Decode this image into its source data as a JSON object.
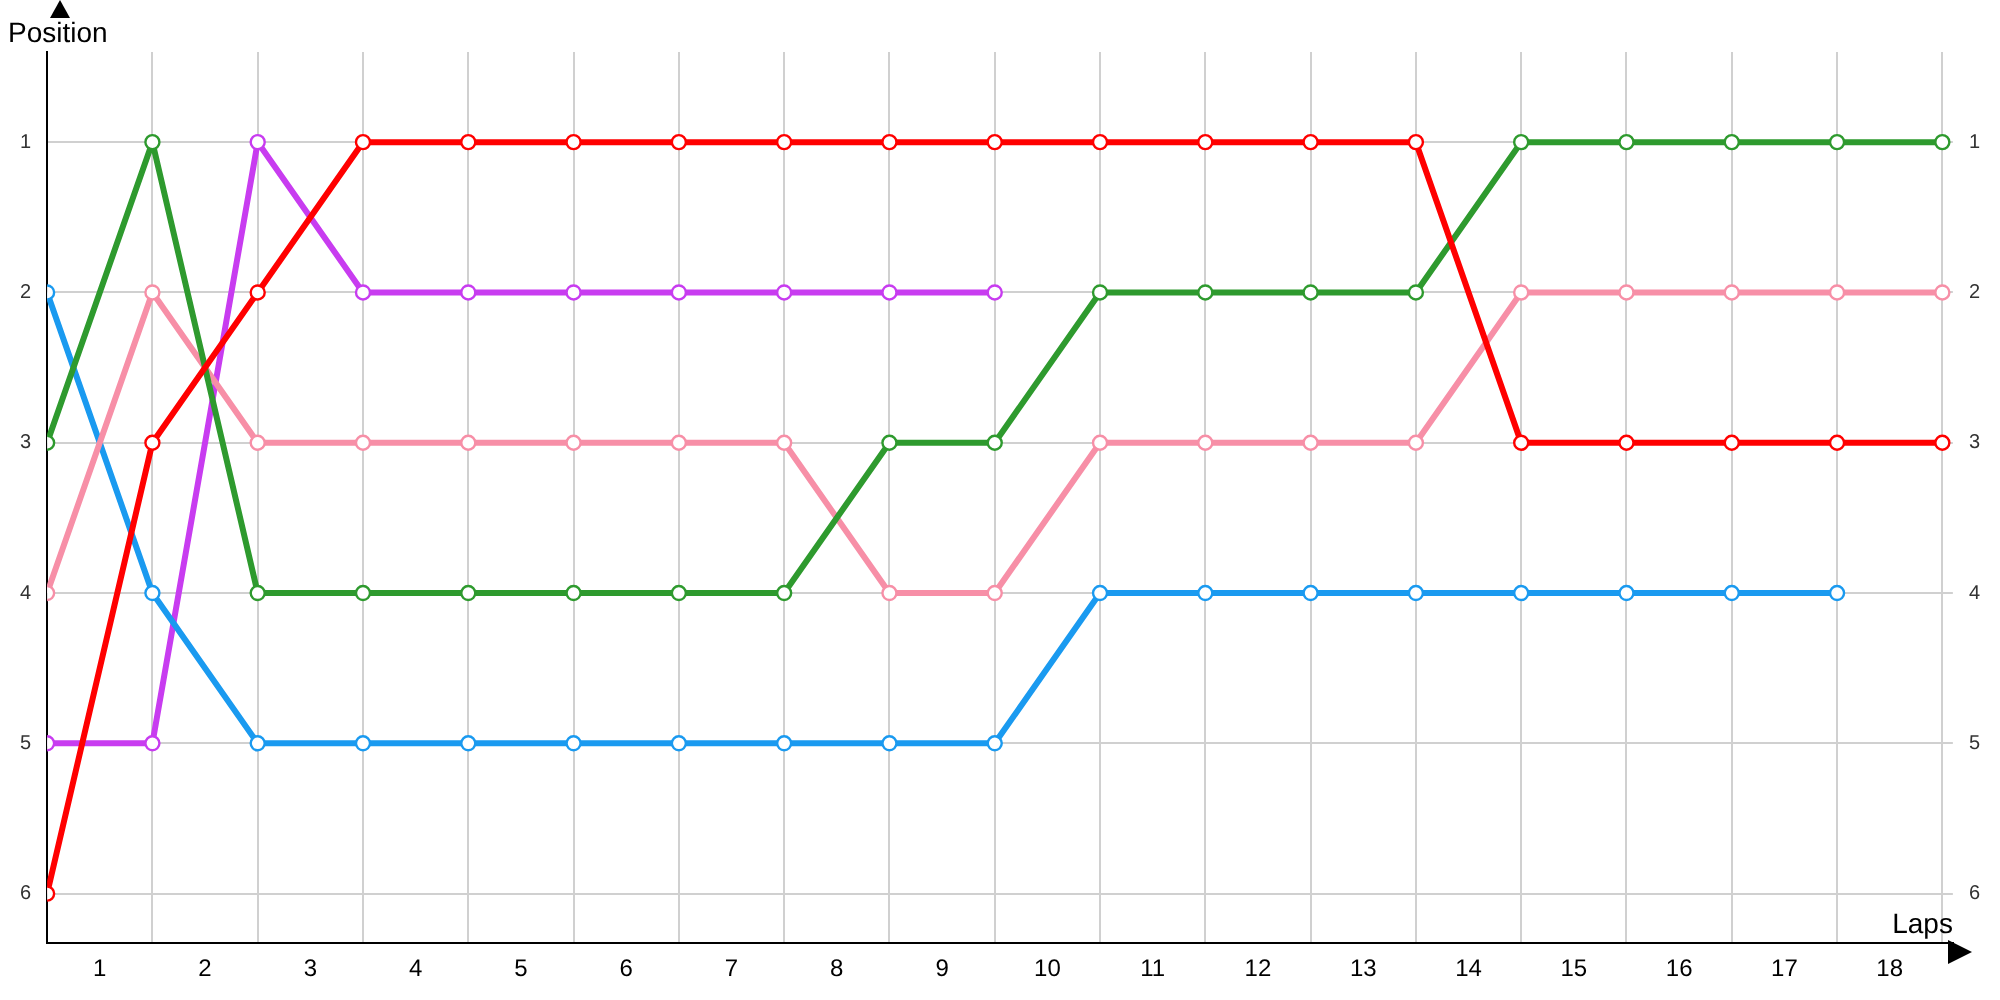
{
  "chart_data": {
    "type": "line",
    "xlabel": "Laps",
    "ylabel": "Position",
    "x": [
      0,
      1,
      2,
      3,
      4,
      5,
      6,
      7,
      8,
      9,
      10,
      11,
      12,
      13,
      14,
      15,
      16,
      17,
      18
    ],
    "series": [
      {
        "color": "#ff0000",
        "values": [
          6,
          3,
          2,
          1,
          1,
          1,
          1,
          1,
          1,
          1,
          1,
          1,
          1,
          1,
          3,
          3,
          3,
          3,
          3
        ]
      },
      {
        "color": "#2e9a2e",
        "values": [
          3,
          1,
          4,
          4,
          4,
          4,
          4,
          4,
          3,
          3,
          2,
          2,
          2,
          2,
          1,
          1,
          1,
          1,
          1
        ]
      },
      {
        "color": "#f78fa7",
        "values": [
          4,
          2,
          3,
          3,
          3,
          3,
          3,
          3,
          4,
          4,
          3,
          3,
          3,
          3,
          2,
          2,
          2,
          2,
          2
        ]
      },
      {
        "color": "#1a9af0",
        "values": [
          2,
          4,
          5,
          5,
          5,
          5,
          5,
          5,
          5,
          5,
          4,
          4,
          4,
          4,
          4,
          4,
          4,
          4,
          null
        ]
      },
      {
        "color": "#c83cf0",
        "values": [
          5,
          5,
          1,
          2,
          2,
          2,
          2,
          2,
          2,
          2,
          null,
          null,
          null,
          null,
          null,
          null,
          null,
          null,
          null
        ]
      }
    ],
    "xlim": [
      0,
      18.1
    ],
    "xticks": [
      {
        "value": 0,
        "label": null
      },
      {
        "value": 0.5,
        "label": "1"
      },
      {
        "value": 1,
        "label": null
      },
      {
        "value": 1.5,
        "label": "2"
      },
      {
        "value": 2,
        "label": null
      },
      {
        "value": 2.5,
        "label": "3"
      },
      {
        "value": 3,
        "label": null
      },
      {
        "value": 3.5,
        "label": "4"
      },
      {
        "value": 4,
        "label": null
      },
      {
        "value": 4.5,
        "label": "5"
      },
      {
        "value": 5,
        "label": null
      },
      {
        "value": 5.5,
        "label": "6"
      },
      {
        "value": 6,
        "label": null
      },
      {
        "value": 6.5,
        "label": "7"
      },
      {
        "value": 7,
        "label": null
      },
      {
        "value": 7.5,
        "label": "8"
      },
      {
        "value": 8,
        "label": null
      },
      {
        "value": 8.5,
        "label": "9"
      },
      {
        "value": 9,
        "label": null
      },
      {
        "value": 9.5,
        "label": "10"
      },
      {
        "value": 10,
        "label": null
      },
      {
        "value": 10.5,
        "label": "11"
      },
      {
        "value": 11,
        "label": null
      },
      {
        "value": 11.5,
        "label": "12"
      },
      {
        "value": 12,
        "label": null
      },
      {
        "value": 12.5,
        "label": "13"
      },
      {
        "value": 13,
        "label": null
      },
      {
        "value": 13.5,
        "label": "14"
      },
      {
        "value": 14,
        "label": null
      },
      {
        "value": 14.5,
        "label": "15"
      },
      {
        "value": 15,
        "label": null
      },
      {
        "value": 15.5,
        "label": "16"
      },
      {
        "value": 16,
        "label": null
      },
      {
        "value": 16.5,
        "label": "17"
      },
      {
        "value": 17,
        "label": null
      },
      {
        "value": 17.5,
        "label": "18"
      },
      {
        "value": 18,
        "label": null
      }
    ],
    "ylim": [
      6.33,
      0.4
    ],
    "yticks": [
      1,
      2,
      3,
      4,
      5,
      6
    ],
    "y2lim": [
      6.33,
      0.4
    ],
    "y2ticks": [
      1,
      2,
      3,
      4,
      5,
      6
    ],
    "grid": true,
    "legend": false,
    "marker": "circle",
    "line_style": "solid"
  }
}
